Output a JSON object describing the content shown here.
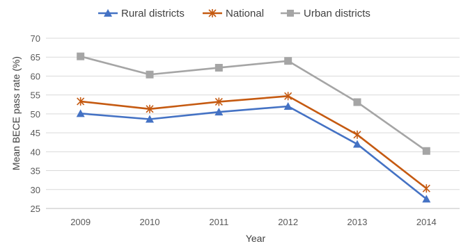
{
  "chart_data": {
    "type": "line",
    "title": "",
    "xlabel": "Year",
    "ylabel": "Mean BECE pass rate (%)",
    "ylim": [
      25,
      70
    ],
    "yticks": [
      25,
      30,
      35,
      40,
      45,
      50,
      55,
      60,
      65,
      70
    ],
    "categories": [
      "2009",
      "2010",
      "2011",
      "2012",
      "2013",
      "2014"
    ],
    "grid": true,
    "legend": "top",
    "series": [
      {
        "name": "Rural districts",
        "color": "#4472C4",
        "marker": "triangle",
        "values": [
          50.1,
          48.6,
          50.5,
          52.0,
          42.0,
          27.5
        ]
      },
      {
        "name": "National",
        "color": "#C55A11",
        "marker": "asterisk",
        "values": [
          53.3,
          51.3,
          53.2,
          54.7,
          44.5,
          30.3
        ]
      },
      {
        "name": "Urban districts",
        "color": "#A5A5A5",
        "marker": "square",
        "values": [
          65.2,
          60.4,
          62.2,
          64.0,
          53.1,
          40.2
        ]
      }
    ]
  }
}
